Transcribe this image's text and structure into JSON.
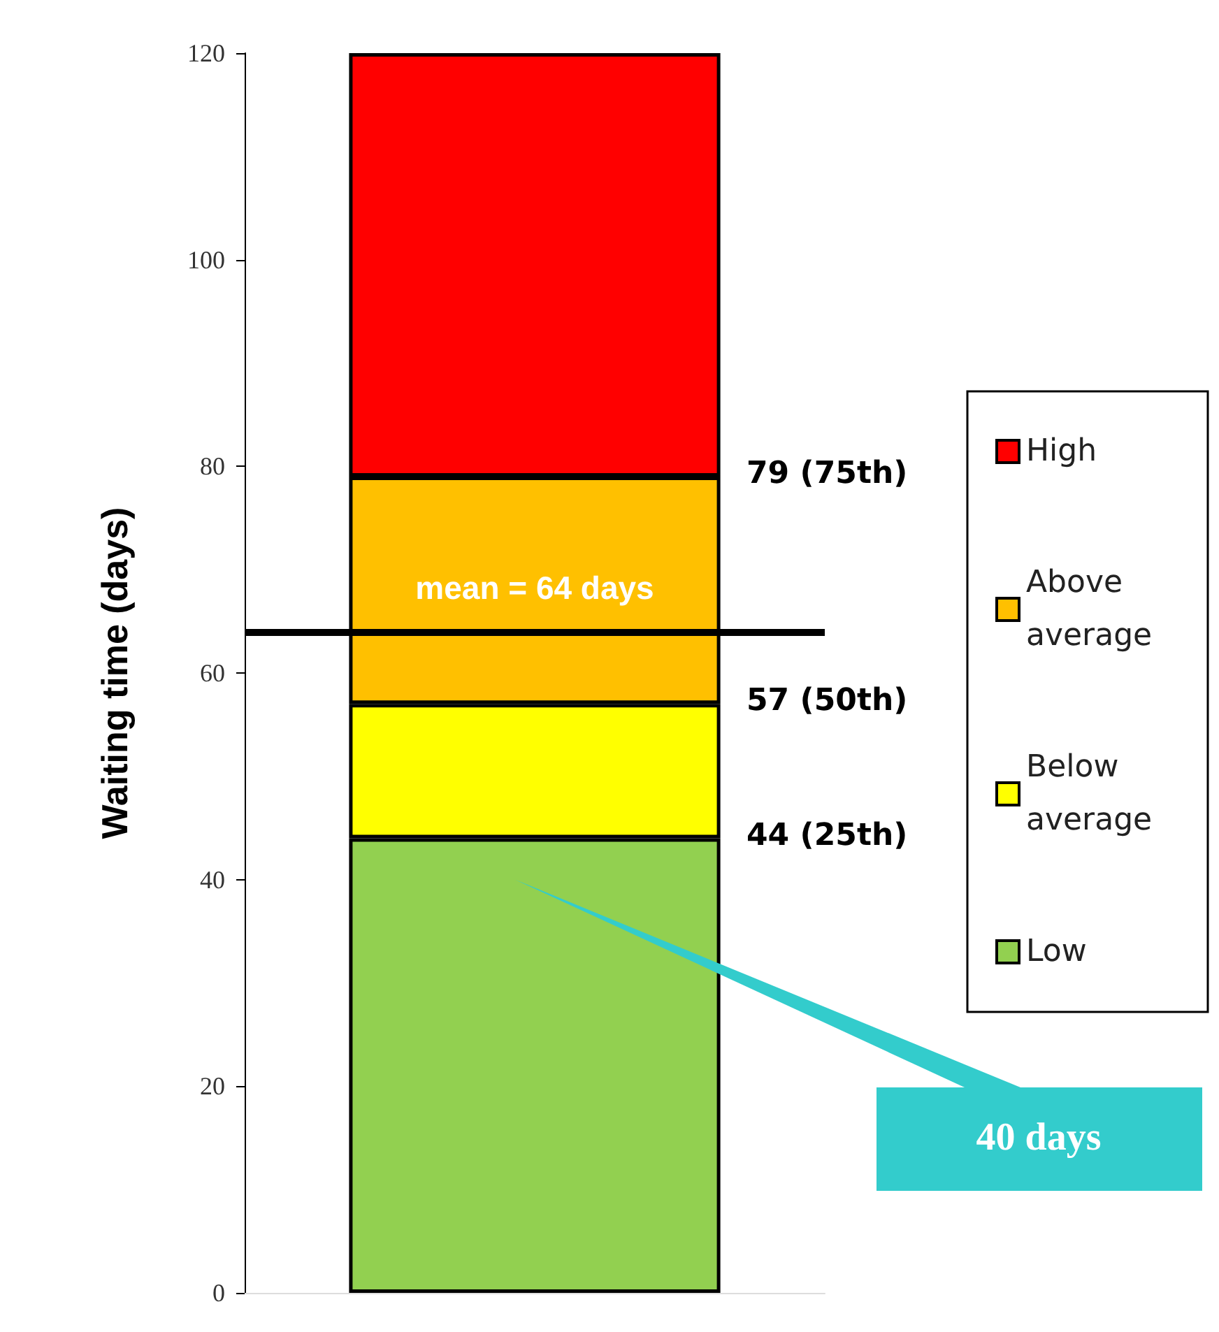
{
  "chart_data": {
    "type": "bar",
    "stacked": true,
    "categories": [
      null
    ],
    "ylabel": "Waiting time (days)",
    "series": [
      {
        "name": "Low",
        "color": "#92d050",
        "values": [
          44
        ]
      },
      {
        "name": "Below average",
        "color": "#ffff00",
        "values": [
          13
        ]
      },
      {
        "name": "Above average",
        "color": "#ffc000",
        "values": [
          22
        ]
      },
      {
        "name": "High",
        "color": "#ff0000",
        "values": [
          41
        ]
      }
    ],
    "ylim": [
      0,
      120
    ],
    "yticks": [
      0,
      20,
      40,
      60,
      80,
      100,
      120
    ],
    "ref_lines": [
      {
        "axis": "y",
        "value": 64,
        "label": "mean = 64 days",
        "color": "#000000"
      }
    ],
    "annotations": [
      "79 (75th)",
      "57 (50th)",
      "44 (25th)",
      "40 days"
    ],
    "legend": "right",
    "grid": false
  }
}
